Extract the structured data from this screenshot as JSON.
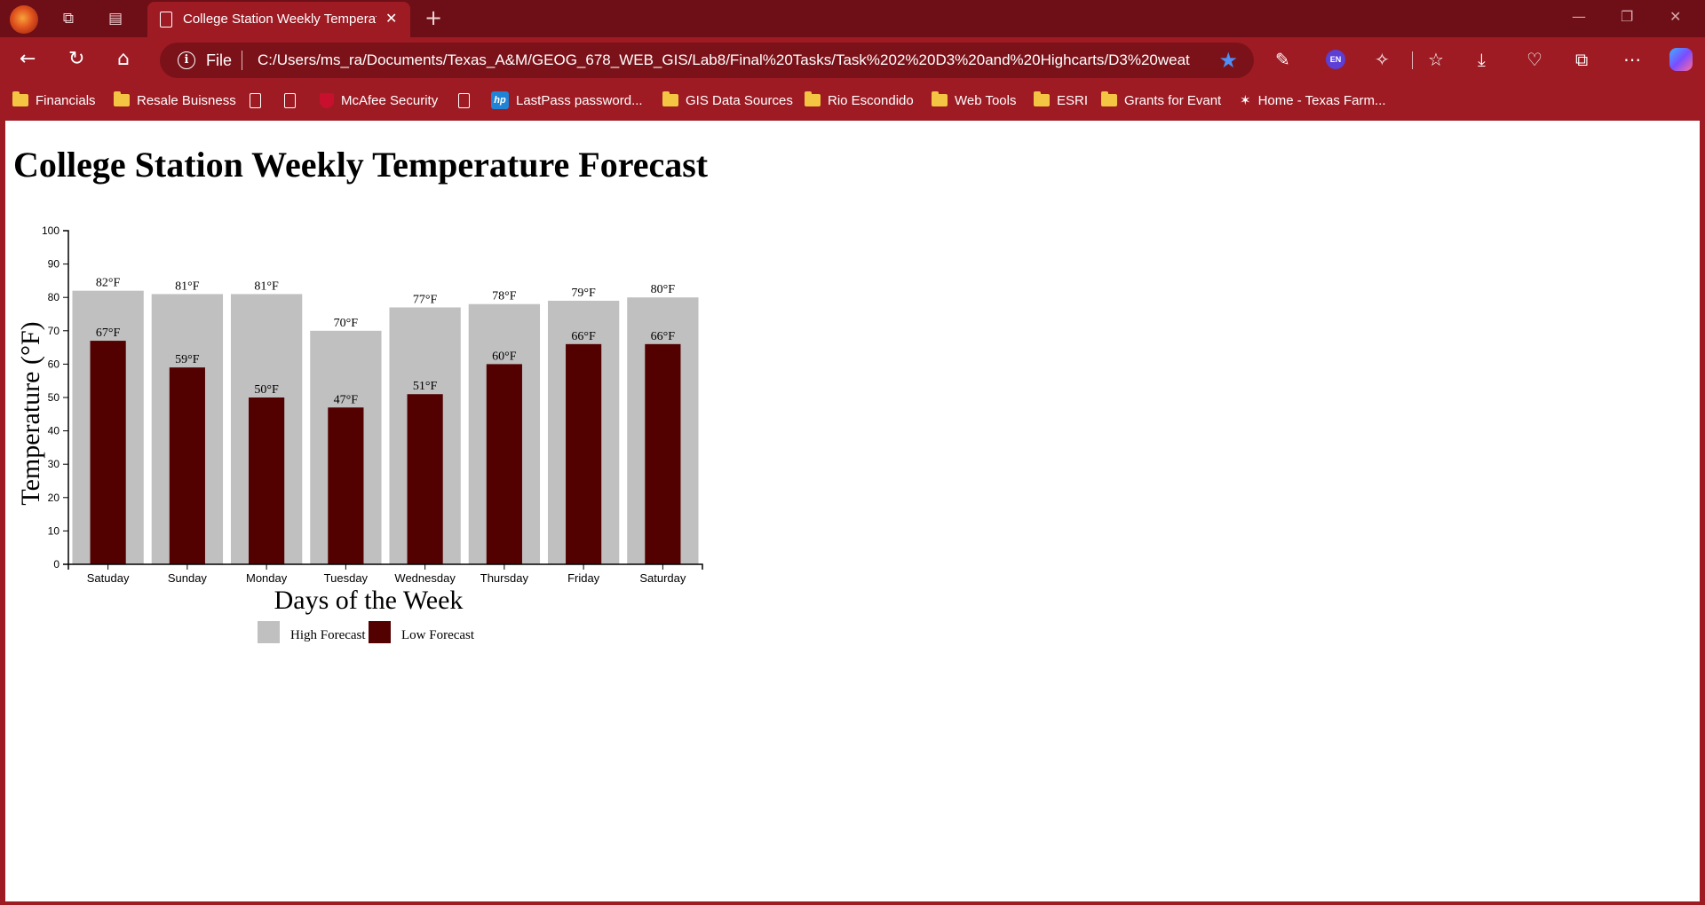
{
  "browser": {
    "tab_title": "College Station Weekly Temperature Forecast",
    "new_tab_icon": "plus-icon",
    "address": {
      "protocol": "File",
      "url": "C:/Users/ms_ra/Documents/Texas_A&M/GEOG_678_WEB_GIS/Lab8/Final%20Tasks/Task%202%20D3%20and%20Highcarts/D3%20weath..."
    },
    "bookmarks": [
      {
        "label": "Financials",
        "icon": "folder-icon"
      },
      {
        "label": "Resale Buisness",
        "icon": "folder-icon"
      },
      {
        "label": "",
        "icon": "page-icon"
      },
      {
        "label": "",
        "icon": "page-icon"
      },
      {
        "label": "McAfee Security",
        "icon": "mcafee-icon"
      },
      {
        "label": "",
        "icon": "page-icon"
      },
      {
        "label": "LastPass password...",
        "icon": "hp-icon"
      },
      {
        "label": "GIS Data Sources",
        "icon": "folder-icon"
      },
      {
        "label": "Rio Escondido",
        "icon": "folder-icon"
      },
      {
        "label": "Web Tools",
        "icon": "folder-icon"
      },
      {
        "label": "ESRI",
        "icon": "folder-icon"
      },
      {
        "label": "Grants for Evant",
        "icon": "folder-icon"
      },
      {
        "label": "Home - Texas Farm...",
        "icon": "star-logo-icon"
      }
    ],
    "colors": {
      "frame": "#9e1b24",
      "tabstrip": "#6e0f17"
    }
  },
  "page": {
    "heading": "College Station Weekly Temperature Forecast"
  },
  "chart_data": {
    "type": "bar",
    "title": "",
    "xlabel": "Days of the Week",
    "ylabel": "Temperature (°F)",
    "ylim": [
      0,
      100
    ],
    "yticks": [
      0,
      10,
      20,
      30,
      40,
      50,
      60,
      70,
      80,
      90,
      100
    ],
    "categories": [
      "Satuday",
      "Sunday",
      "Monday",
      "Tuesday",
      "Wednesday",
      "Thursday",
      "Friday",
      "Saturday"
    ],
    "unit_suffix": "°F",
    "series": [
      {
        "name": "High Forecast",
        "color": "#c0c0c0",
        "values": [
          82,
          81,
          81,
          70,
          77,
          78,
          79,
          80
        ]
      },
      {
        "name": "Low Forecast",
        "color": "#520000",
        "values": [
          67,
          59,
          50,
          47,
          51,
          60,
          66,
          66
        ]
      }
    ],
    "legend": "bottom",
    "grid": false
  }
}
